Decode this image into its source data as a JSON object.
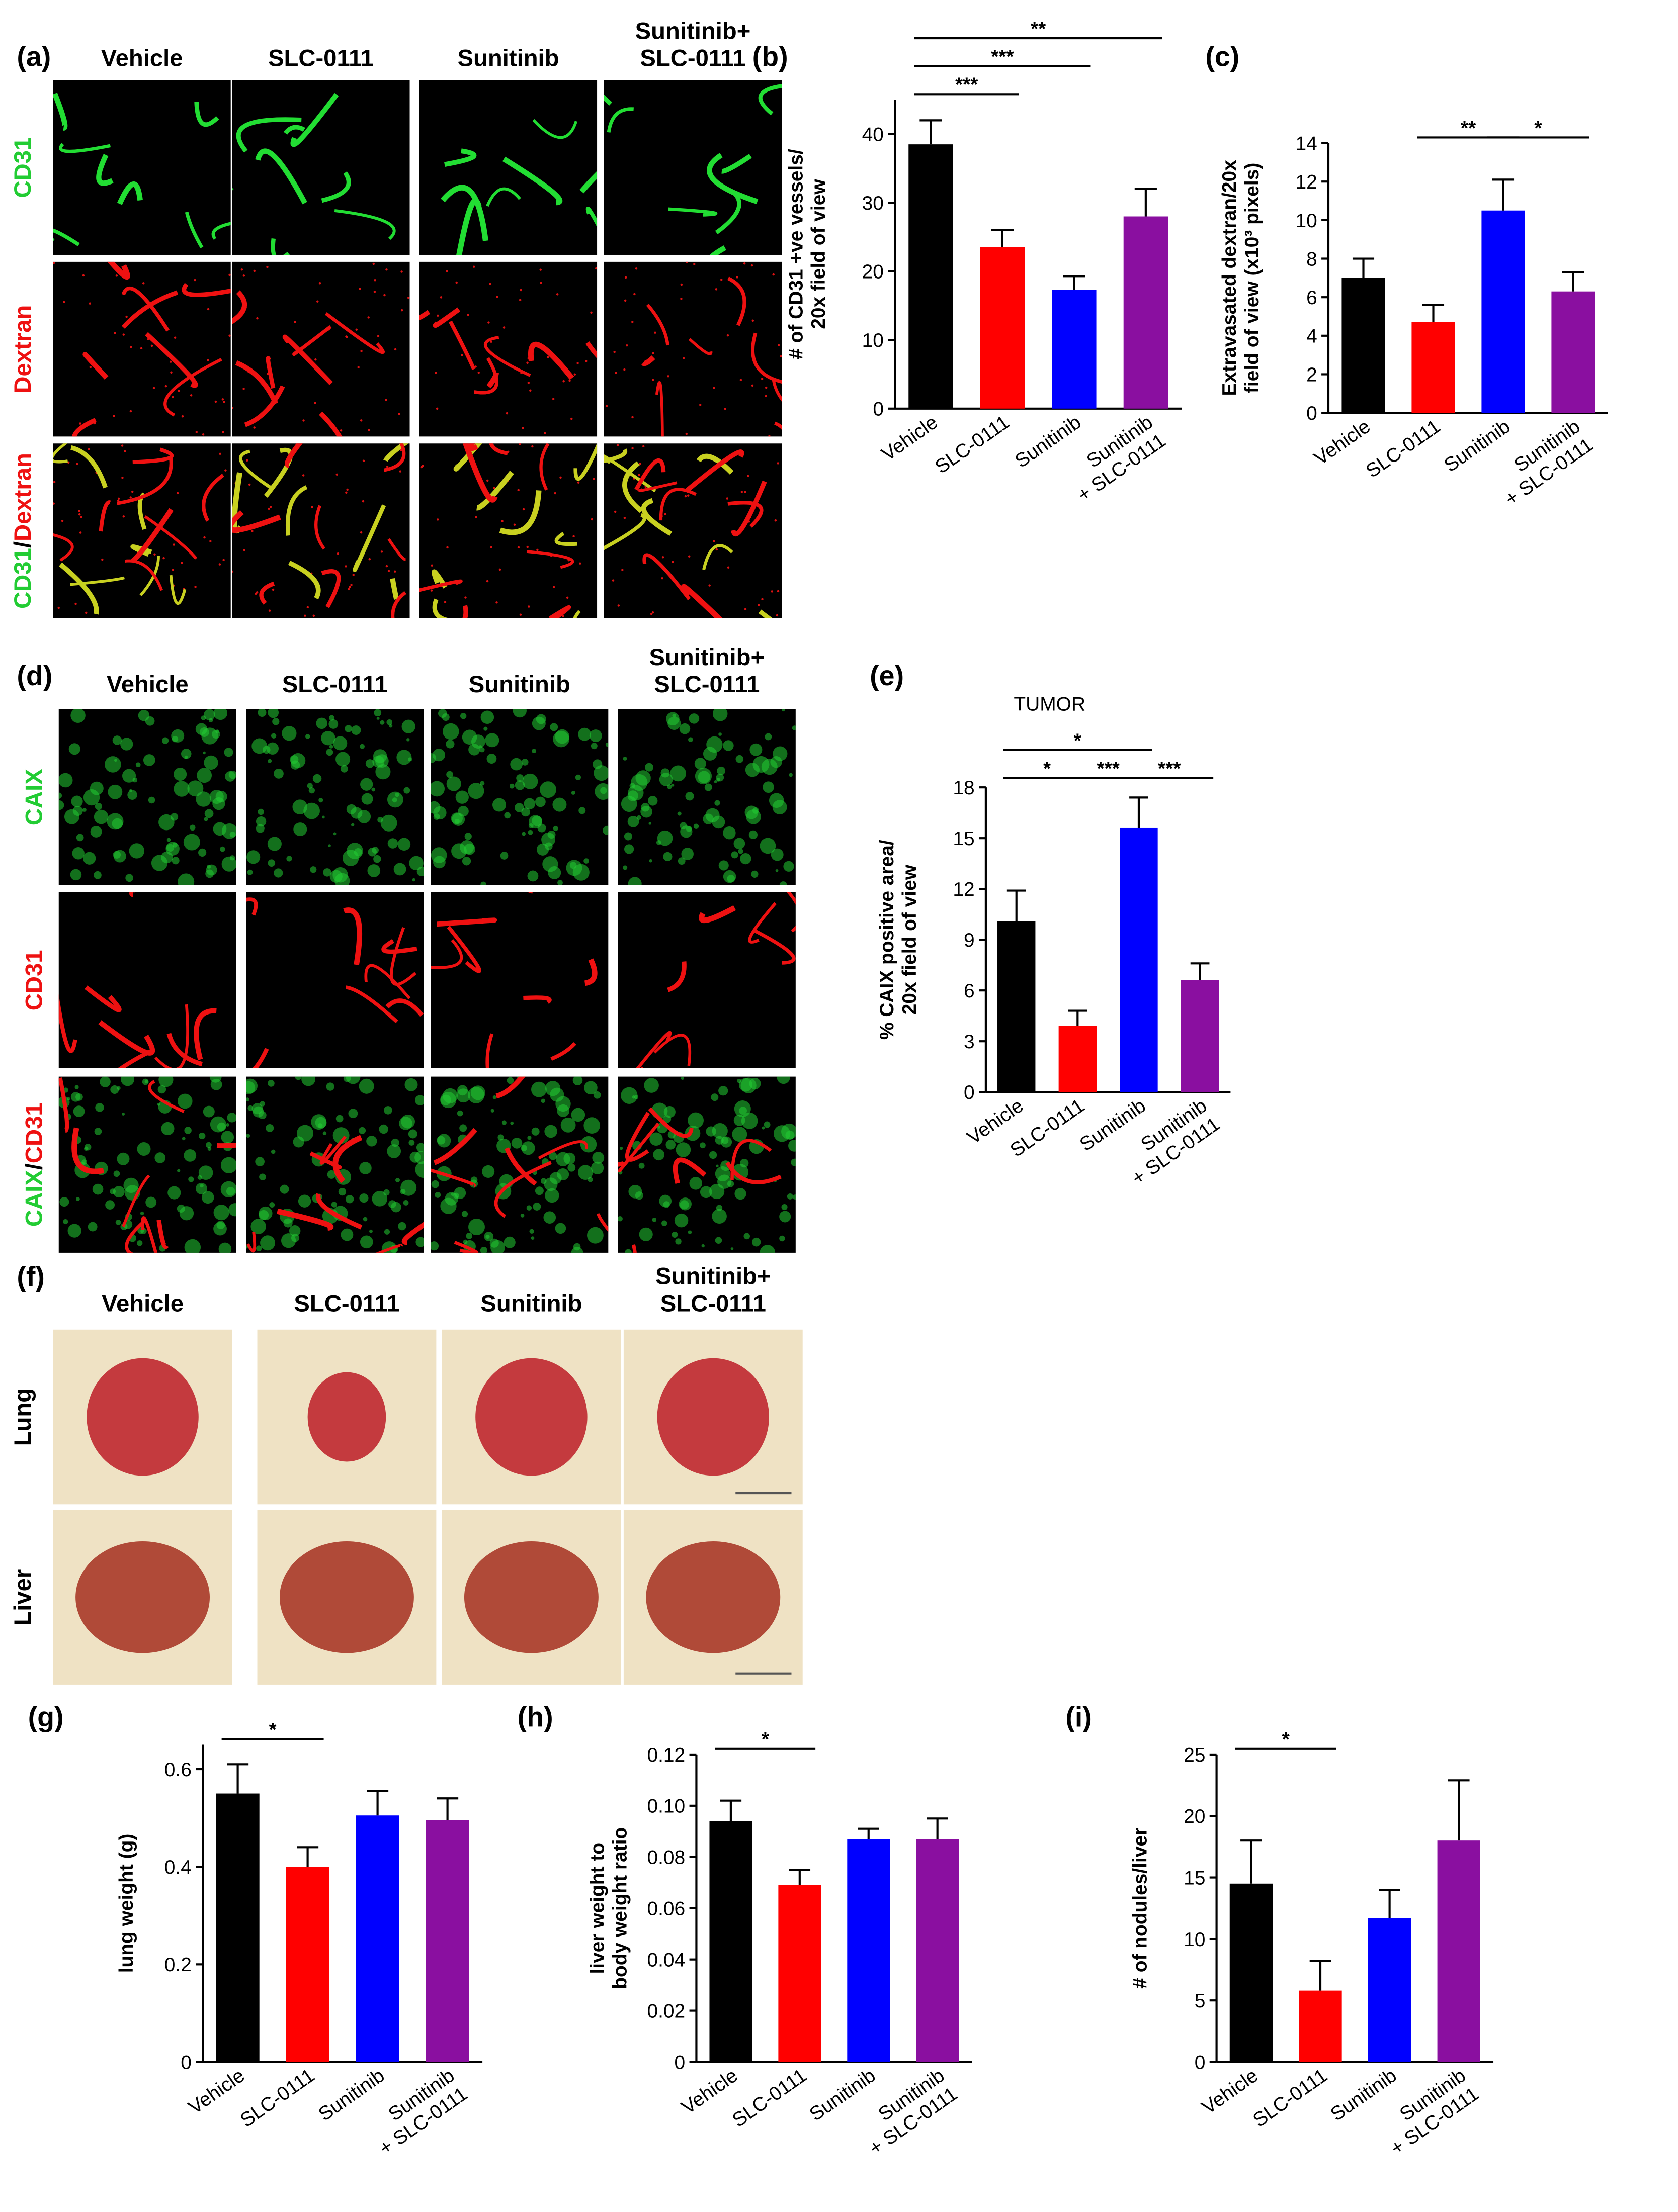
{
  "figure": {
    "panel_labels": [
      "(a)",
      "(b)",
      "(c)",
      "(d)",
      "(e)",
      "(f)",
      "(g)",
      "(h)",
      "(i)"
    ],
    "a": {
      "columns": [
        "Vehicle",
        "SLC-0111",
        "Sunitinib",
        "Sunitinib+\nSLC-0111"
      ],
      "rows": [
        [
          "CD31"
        ],
        [
          "Dextran"
        ],
        [
          "CD31",
          "/",
          "Dextran"
        ]
      ]
    },
    "d": {
      "columns": [
        "Vehicle",
        "SLC-0111",
        "Sunitinib",
        "Sunitinib+\nSLC-0111"
      ],
      "rows": [
        [
          "CAIX"
        ],
        [
          "CD31"
        ],
        [
          "CAIX",
          "/",
          "CD31"
        ]
      ]
    },
    "f": {
      "columns": [
        "Vehicle",
        "SLC-0111",
        "Sunitinib",
        "Sunitinib+\nSLC-0111"
      ],
      "rows": [
        [
          "Lung"
        ],
        [
          "Liver"
        ]
      ]
    }
  },
  "chart_data": [
    {
      "type": "bar",
      "categories": [
        "Vehicle",
        "SLC-0111",
        "Sunitinib",
        "Sunitinib\n+ SLC-0111"
      ],
      "values": [
        38.5,
        23.5,
        17.3,
        28
      ],
      "errors": [
        3.5,
        2.5,
        2,
        4
      ],
      "colors": [
        "#000000",
        "#ff0000",
        "#0000ff",
        "#8a0fa0"
      ],
      "ylabel": "# of CD31 +ve vessels/\n20x field of view",
      "ylim": [
        0,
        45
      ],
      "yticks": [
        0,
        10,
        20,
        30,
        40
      ],
      "comparisons": [
        {
          "pair": [
            0,
            1
          ],
          "label": "***"
        },
        {
          "pair": [
            0,
            2
          ],
          "label": "***"
        },
        {
          "pair": [
            0,
            3
          ],
          "label": "**"
        }
      ]
    },
    {
      "type": "bar",
      "categories": [
        "Vehicle",
        "SLC-0111",
        "Sunitinib",
        "Sunitinib\n+ SLC-0111"
      ],
      "values": [
        7,
        4.7,
        10.5,
        6.3
      ],
      "errors": [
        1,
        0.9,
        1.6,
        1
      ],
      "colors": [
        "#000000",
        "#ff0000",
        "#0000ff",
        "#8a0fa0"
      ],
      "ylabel": "Extravasated dextran/20x\nfield of view (x10³ pixels)",
      "ylim": [
        0,
        14
      ],
      "yticks": [
        0,
        2,
        4,
        6,
        8,
        10,
        12,
        14
      ],
      "comparisons": [
        {
          "pair": [
            1,
            2
          ],
          "label": "**"
        },
        {
          "pair": [
            2,
            3
          ],
          "label": "*"
        }
      ]
    },
    {
      "type": "bar",
      "title": "TUMOR",
      "categories": [
        "Vehicle",
        "SLC-0111",
        "Sunitinib",
        "Sunitinib\n+ SLC-0111"
      ],
      "values": [
        10.1,
        3.9,
        15.6,
        6.6
      ],
      "errors": [
        1.8,
        0.9,
        1.8,
        1
      ],
      "colors": [
        "#000000",
        "#ff0000",
        "#0000ff",
        "#8a0fa0"
      ],
      "ylabel": "% CAIX positive area/\n20x field of view",
      "ylim": [
        0,
        18
      ],
      "yticks": [
        0,
        3,
        6,
        9,
        12,
        15,
        18
      ],
      "comparisons": [
        {
          "pair": [
            0,
            1
          ],
          "label": "*"
        },
        {
          "pair": [
            1,
            2
          ],
          "label": "***"
        },
        {
          "pair": [
            2,
            3
          ],
          "label": "***"
        },
        {
          "pair": [
            0,
            2
          ],
          "label": "*"
        }
      ]
    },
    {
      "type": "bar",
      "categories": [
        "Vehicle",
        "SLC-0111",
        "Sunitinib",
        "Sunitinib\n+ SLC-0111"
      ],
      "values": [
        0.55,
        0.4,
        0.505,
        0.495
      ],
      "errors": [
        0.06,
        0.04,
        0.05,
        0.045
      ],
      "colors": [
        "#000000",
        "#ff0000",
        "#0000ff",
        "#8a0fa0"
      ],
      "ylabel": "lung weight (g)",
      "ylim": [
        0,
        0.65
      ],
      "yticks": [
        0,
        0.2,
        0.4,
        0.6
      ],
      "comparisons": [
        {
          "pair": [
            0,
            1
          ],
          "label": "*"
        }
      ]
    },
    {
      "type": "bar",
      "categories": [
        "Vehicle",
        "SLC-0111",
        "Sunitinib",
        "Sunitinib\n+ SLC-0111"
      ],
      "values": [
        0.094,
        0.069,
        0.087,
        0.087
      ],
      "errors": [
        0.008,
        0.006,
        0.004,
        0.008
      ],
      "colors": [
        "#000000",
        "#ff0000",
        "#0000ff",
        "#8a0fa0"
      ],
      "ylabel": "liver weight to\nbody weight ratio",
      "ylim": [
        0,
        0.12
      ],
      "yticks": [
        {
          "value": 0,
          "label": "0"
        },
        {
          "value": 0.02,
          "label": "0.02"
        },
        {
          "value": 0.04,
          "label": "0.04"
        },
        {
          "value": 0.06,
          "label": "0.06"
        },
        {
          "value": 0.08,
          "label": "0.08"
        },
        {
          "value": 0.1,
          "label": "0.10"
        },
        {
          "value": 0.12,
          "label": "0.12"
        }
      ],
      "comparisons": [
        {
          "pair": [
            0,
            1
          ],
          "label": "*"
        }
      ]
    },
    {
      "type": "bar",
      "categories": [
        "Vehicle",
        "SLC-0111",
        "Sunitinib",
        "Sunitinib\n+ SLC-0111"
      ],
      "values": [
        14.5,
        5.8,
        11.7,
        18
      ],
      "errors": [
        3.5,
        2.4,
        2.3,
        4.9
      ],
      "colors": [
        "#000000",
        "#ff0000",
        "#0000ff",
        "#8a0fa0"
      ],
      "ylabel": "# of nodules/liver",
      "ylim": [
        0,
        25
      ],
      "yticks": [
        0,
        5,
        10,
        15,
        20,
        25
      ],
      "comparisons": [
        {
          "pair": [
            0,
            1
          ],
          "label": "*"
        }
      ]
    }
  ]
}
